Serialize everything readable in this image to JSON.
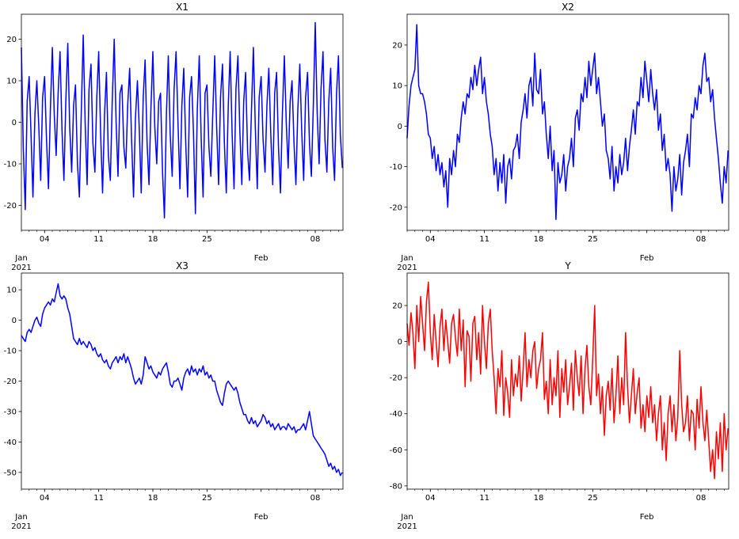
{
  "chart_data": {
    "type": "line",
    "layout": "2x2 subplots",
    "grid": false,
    "x": [
      "2021-01-01",
      "2021-01-02",
      "2021-01-03",
      "2021-01-04",
      "2021-01-05",
      "2021-01-06",
      "2021-01-07",
      "2021-01-08",
      "2021-01-09",
      "2021-01-10",
      "2021-01-11",
      "2021-01-12",
      "2021-01-13",
      "2021-01-14",
      "2021-01-15",
      "2021-01-16",
      "2021-01-17",
      "2021-01-18",
      "2021-01-19",
      "2021-01-20",
      "2021-01-21",
      "2021-01-22",
      "2021-01-23",
      "2021-01-24",
      "2021-01-25",
      "2021-01-26",
      "2021-01-27",
      "2021-01-28",
      "2021-01-29",
      "2021-01-30",
      "2021-01-31",
      "2021-02-01",
      "2021-02-02",
      "2021-02-03",
      "2021-02-04",
      "2021-02-05",
      "2021-02-06",
      "2021-02-07",
      "2021-02-08",
      "2021-02-09",
      "2021-02-10",
      "2021-02-11"
    ],
    "sample_times": [
      "00:00",
      "06:00",
      "12:00",
      "18:00"
    ],
    "xlim": [
      "2021-01-01 00:00",
      "2021-02-11 14:00"
    ],
    "x_ticks": [
      {
        "date": "2021-01-04",
        "label": "04"
      },
      {
        "date": "2021-01-11",
        "label": "11"
      },
      {
        "date": "2021-01-18",
        "label": "18"
      },
      {
        "date": "2021-01-25",
        "label": "25"
      },
      {
        "date": "2021-02-01",
        "label": ""
      },
      {
        "date": "2021-02-08",
        "label": "08"
      }
    ],
    "x_month_labels": [
      {
        "date": "2021-01-01",
        "label": "Jan",
        "year": "2021"
      },
      {
        "date": "2021-02-01",
        "label": "Feb",
        "year": ""
      }
    ],
    "subplots": [
      {
        "title": "X1",
        "color": "#0000ff",
        "ylim": [
          -26,
          26
        ],
        "yticks": [
          -20,
          -10,
          0,
          10,
          20
        ],
        "values": [
          [
            18,
            -6,
            -21,
            5
          ],
          [
            11,
            -3,
            -18,
            2
          ],
          [
            10,
            -1,
            -14,
            6
          ],
          [
            11,
            -4,
            -16,
            3
          ],
          [
            18,
            2,
            -8,
            7
          ],
          [
            17,
            -2,
            -14,
            5
          ],
          [
            19,
            -1,
            -12,
            4
          ],
          [
            9,
            -10,
            -18,
            3
          ],
          [
            21,
            0,
            -15,
            8
          ],
          [
            14,
            -5,
            -12,
            6
          ],
          [
            17,
            -3,
            -17,
            2
          ],
          [
            12,
            -8,
            -14,
            5
          ],
          [
            20,
            0,
            -13,
            7
          ],
          [
            9,
            -6,
            -11,
            4
          ],
          [
            13,
            -4,
            -18,
            1
          ],
          [
            10,
            -2,
            -17,
            6
          ],
          [
            15,
            -5,
            -15,
            3
          ],
          [
            17,
            -1,
            -10,
            5
          ],
          [
            7,
            -12,
            -23,
            2
          ],
          [
            16,
            -3,
            -13,
            8
          ],
          [
            17,
            0,
            -16,
            4
          ],
          [
            13,
            -5,
            -18,
            6
          ],
          [
            11,
            -2,
            -22,
            3
          ],
          [
            16,
            -4,
            -18,
            7
          ],
          [
            9,
            -6,
            -13,
            2
          ],
          [
            16,
            -1,
            -15,
            6
          ],
          [
            14,
            -5,
            -17,
            4
          ],
          [
            17,
            -3,
            -16,
            8
          ],
          [
            16,
            -2,
            -15,
            5
          ],
          [
            12,
            -7,
            -14,
            3
          ],
          [
            18,
            -1,
            -16,
            6
          ],
          [
            11,
            -4,
            -12,
            4
          ],
          [
            13,
            -3,
            -15,
            7
          ],
          [
            12,
            -6,
            -17,
            2
          ],
          [
            16,
            0,
            -11,
            5
          ],
          [
            10,
            -5,
            -15,
            3
          ],
          [
            14,
            -2,
            -14,
            6
          ],
          [
            12,
            -5,
            -13,
            4
          ],
          [
            24,
            2,
            -10,
            8
          ],
          [
            17,
            -4,
            -12,
            5
          ],
          [
            13,
            -6,
            -14,
            7
          ],
          [
            16,
            -3,
            -11,
            5
          ]
        ]
      },
      {
        "title": "X2",
        "color": "#0000ff",
        "ylim": [
          -25.7,
          27.6
        ],
        "yticks": [
          -20,
          -10,
          0,
          10,
          20
        ],
        "values": [
          [
            -3,
            5,
            10,
            12
          ],
          [
            14,
            25,
            10,
            8
          ],
          [
            8,
            6,
            3,
            -2
          ],
          [
            -3,
            -8,
            -5,
            -11
          ],
          [
            -7,
            -12,
            -9,
            -15
          ],
          [
            -11,
            -20,
            -8,
            -12
          ],
          [
            -6,
            -10,
            -2,
            -4
          ],
          [
            2,
            6,
            3,
            8
          ],
          [
            7,
            12,
            9,
            15
          ],
          [
            10,
            14,
            17,
            8
          ],
          [
            12,
            6,
            3,
            -2
          ],
          [
            -5,
            -12,
            -8,
            -16
          ],
          [
            -9,
            -14,
            -7,
            -19
          ],
          [
            -10,
            -8,
            -13,
            -6
          ],
          [
            -5,
            -2,
            -8,
            1
          ],
          [
            4,
            8,
            2,
            10
          ],
          [
            12,
            5,
            18,
            9
          ],
          [
            8,
            14,
            3,
            6
          ],
          [
            -2,
            -8,
            0,
            -11
          ],
          [
            -6,
            -23,
            -9,
            -14
          ],
          [
            -12,
            -7,
            -16,
            -10
          ],
          [
            -8,
            -3,
            -10,
            2
          ],
          [
            4,
            -1,
            8,
            6
          ],
          [
            12,
            7,
            16,
            10
          ],
          [
            14,
            18,
            8,
            12
          ],
          [
            6,
            0,
            3,
            -6
          ],
          [
            -8,
            -13,
            -5,
            -16
          ],
          [
            -10,
            -14,
            -7,
            -12
          ],
          [
            -9,
            -3,
            -11,
            -5
          ],
          [
            -1,
            4,
            -2,
            6
          ],
          [
            5,
            12,
            7,
            16
          ],
          [
            11,
            6,
            14,
            8
          ],
          [
            4,
            9,
            -1,
            3
          ],
          [
            -6,
            -2,
            -11,
            -8
          ],
          [
            -12,
            -21,
            -10,
            -16
          ],
          [
            -13,
            -7,
            -17,
            -9
          ],
          [
            -6,
            -2,
            -10,
            3
          ],
          [
            2,
            7,
            4,
            10
          ],
          [
            8,
            15,
            18,
            11
          ],
          [
            12,
            6,
            9,
            2
          ],
          [
            -3,
            -8,
            -14,
            -19
          ],
          [
            -10,
            -14,
            -6,
            2
          ]
        ]
      },
      {
        "title": "X3",
        "color": "#0000ff",
        "ylim": [
          -55.5,
          15.5
        ],
        "yticks": [
          -50,
          -40,
          -30,
          -20,
          -10,
          0,
          10
        ],
        "values": [
          [
            -5,
            -6,
            -7,
            -4
          ],
          [
            -3,
            -4,
            -2,
            0
          ],
          [
            1,
            -1,
            -2,
            2
          ],
          [
            4,
            5,
            6,
            5
          ],
          [
            7,
            6,
            9,
            12
          ],
          [
            8,
            7,
            8,
            7
          ],
          [
            4,
            2,
            -2,
            -6
          ],
          [
            -7,
            -8,
            -6,
            -8
          ],
          [
            -7,
            -8,
            -9,
            -7
          ],
          [
            -8,
            -10,
            -9,
            -11
          ],
          [
            -12,
            -11,
            -13,
            -14
          ],
          [
            -13,
            -15,
            -16,
            -14
          ],
          [
            -13,
            -12,
            -14,
            -12
          ],
          [
            -13,
            -11,
            -14,
            -12
          ],
          [
            -14,
            -16,
            -19,
            -21
          ],
          [
            -20,
            -19,
            -21,
            -18
          ],
          [
            -12,
            -14,
            -16,
            -15
          ],
          [
            -17,
            -18,
            -19,
            -17
          ],
          [
            -18,
            -16,
            -15,
            -14
          ],
          [
            -17,
            -21,
            -22,
            -20
          ],
          [
            -20,
            -19,
            -21,
            -23
          ],
          [
            -19,
            -17,
            -16,
            -18
          ],
          [
            -15,
            -17,
            -16,
            -18
          ],
          [
            -16,
            -17,
            -15,
            -18
          ],
          [
            -17,
            -19,
            -18,
            -20
          ],
          [
            -20,
            -23,
            -25,
            -27
          ],
          [
            -28,
            -24,
            -21,
            -20
          ],
          [
            -21,
            -22,
            -23,
            -22
          ],
          [
            -24,
            -27,
            -29,
            -31
          ],
          [
            -31,
            -33,
            -34,
            -32
          ],
          [
            -34,
            -33,
            -35,
            -34
          ],
          [
            -33,
            -31,
            -32,
            -34
          ],
          [
            -33,
            -35,
            -34,
            -36
          ],
          [
            -35,
            -34,
            -36,
            -35
          ],
          [
            -35,
            -36,
            -34,
            -35
          ],
          [
            -36,
            -35,
            -37,
            -36
          ],
          [
            -36,
            -35,
            -34,
            -36
          ],
          [
            -33,
            -30,
            -34,
            -38
          ],
          [
            -39,
            -40,
            -41,
            -42
          ],
          [
            -43,
            -44,
            -46,
            -48
          ],
          [
            -47,
            -49,
            -48,
            -50
          ],
          [
            -49,
            -51,
            -50,
            -50
          ]
        ]
      },
      {
        "title": "Y",
        "color": "#ff0000",
        "ylim": [
          -81.8,
          38
        ],
        "yticks": [
          -80,
          -60,
          -40,
          -20,
          0,
          20
        ],
        "values": [
          [
            10,
            -2,
            16,
            5
          ],
          [
            -15,
            20,
            0,
            25
          ],
          [
            10,
            -5,
            22,
            33
          ],
          [
            5,
            -10,
            15,
            0
          ],
          [
            -14,
            8,
            18,
            -5
          ],
          [
            12,
            0,
            -12,
            10
          ],
          [
            15,
            2,
            -8,
            18
          ],
          [
            -5,
            12,
            -25,
            6
          ],
          [
            3,
            -22,
            10,
            14
          ],
          [
            -10,
            5,
            -18,
            20
          ],
          [
            0,
            -15,
            10,
            18
          ],
          [
            -5,
            -20,
            -40,
            -15
          ],
          [
            -25,
            -5,
            -41,
            -20
          ],
          [
            -28,
            -42,
            -10,
            -30
          ],
          [
            -18,
            -25,
            -8,
            -33
          ],
          [
            -15,
            5,
            -25,
            -10
          ],
          [
            -20,
            -5,
            0,
            -26
          ],
          [
            -15,
            -10,
            5,
            -32
          ],
          [
            -22,
            -40,
            -10,
            -35
          ],
          [
            -20,
            -30,
            -5,
            -42
          ],
          [
            -15,
            -28,
            -10,
            -35
          ],
          [
            -25,
            -12,
            -38,
            -5
          ],
          [
            -20,
            -30,
            -8,
            -40
          ],
          [
            -15,
            -2,
            -25,
            -35
          ],
          [
            -10,
            20,
            -30,
            -18
          ],
          [
            -40,
            -25,
            -52,
            -30
          ],
          [
            -22,
            -38,
            -15,
            -45
          ],
          [
            -30,
            -8,
            -40,
            -20
          ],
          [
            -35,
            5,
            -25,
            -45
          ],
          [
            -30,
            -15,
            -40,
            -28
          ],
          [
            -20,
            -48,
            -35,
            -50
          ],
          [
            -30,
            -42,
            -25,
            -45
          ],
          [
            -35,
            -55,
            -40,
            -30
          ],
          [
            -60,
            -45,
            -66,
            -40
          ],
          [
            -30,
            -50,
            -35,
            -55
          ],
          [
            -42,
            -5,
            -35,
            -50
          ],
          [
            -45,
            -30,
            -55,
            -38
          ],
          [
            -40,
            -60,
            -32,
            -48
          ],
          [
            -25,
            -45,
            -55,
            -38
          ],
          [
            -55,
            -72,
            -60,
            -76
          ],
          [
            -50,
            -65,
            -45,
            -72
          ],
          [
            -40,
            -60,
            -48,
            -52
          ]
        ]
      }
    ]
  }
}
